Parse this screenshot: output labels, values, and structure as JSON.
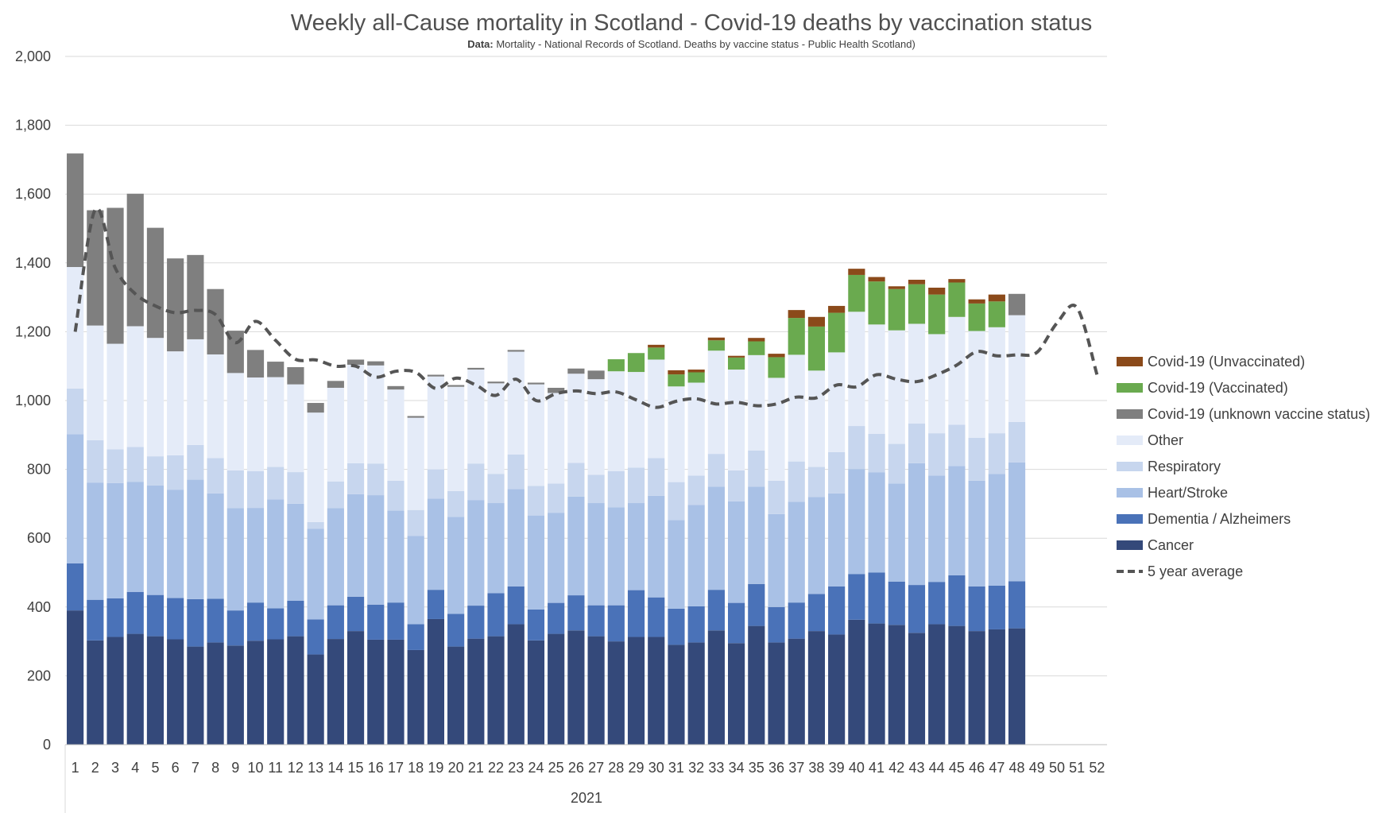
{
  "chart_data": {
    "type": "bar",
    "title": "Weekly all-Cause mortality in Scotland - Covid-19 deaths by vaccination status",
    "subtitle_bold": "Data:",
    "subtitle": " Mortality - National Records of Scotland. Deaths by vaccine status - Public Health Scotland)",
    "xgroup_label": "2021",
    "ylim": [
      0,
      2000
    ],
    "yticks": [
      "0",
      "200",
      "400",
      "600",
      "800",
      "1,000",
      "1,200",
      "1,400",
      "1,600",
      "1,800",
      "2,000"
    ],
    "categories": [
      "1",
      "2",
      "3",
      "4",
      "5",
      "6",
      "7",
      "8",
      "9",
      "10",
      "11",
      "12",
      "13",
      "14",
      "15",
      "16",
      "17",
      "18",
      "19",
      "20",
      "21",
      "22",
      "23",
      "24",
      "25",
      "26",
      "27",
      "28",
      "29",
      "30",
      "31",
      "32",
      "33",
      "34",
      "35",
      "36",
      "37",
      "38",
      "39",
      "40",
      "41",
      "42",
      "43",
      "44",
      "45",
      "46",
      "47",
      "48",
      "49",
      "50",
      "51",
      "52"
    ],
    "stacked": true,
    "grid": true,
    "legend_position": "right",
    "series": [
      {
        "name": "Cancer",
        "color": "#34497a",
        "values": [
          390,
          303,
          313,
          322,
          315,
          306,
          285,
          297,
          288,
          302,
          306,
          315,
          262,
          307,
          330,
          305,
          305,
          275,
          365,
          285,
          308,
          315,
          350,
          303,
          322,
          332,
          315,
          300,
          313,
          313,
          290,
          297,
          332,
          295,
          345,
          297,
          308,
          330,
          320,
          363,
          352,
          348,
          325,
          350,
          345,
          330,
          335,
          338,
          null,
          null,
          null,
          null
        ]
      },
      {
        "name": "Dementia / Alzheimers",
        "color": "#4a72b8",
        "values": [
          137,
          118,
          112,
          122,
          120,
          120,
          138,
          127,
          102,
          111,
          90,
          103,
          102,
          98,
          100,
          102,
          108,
          75,
          85,
          95,
          96,
          125,
          110,
          90,
          90,
          102,
          90,
          105,
          136,
          115,
          105,
          105,
          118,
          117,
          122,
          103,
          105,
          108,
          140,
          133,
          148,
          126,
          139,
          123,
          147,
          130,
          127,
          137,
          null,
          null,
          null,
          null
        ]
      },
      {
        "name": "Heart/Stroke",
        "color": "#a9c1e6",
        "values": [
          375,
          340,
          335,
          320,
          318,
          315,
          347,
          306,
          297,
          275,
          317,
          282,
          263,
          282,
          298,
          318,
          267,
          257,
          265,
          282,
          307,
          262,
          283,
          273,
          262,
          287,
          297,
          285,
          253,
          295,
          258,
          295,
          300,
          295,
          283,
          270,
          293,
          282,
          270,
          305,
          291,
          285,
          354,
          309,
          318,
          307,
          325,
          345,
          null,
          null,
          null,
          null
        ]
      },
      {
        "name": "Respiratory",
        "color": "#c7d6ee",
        "values": [
          133,
          124,
          98,
          101,
          85,
          100,
          101,
          103,
          110,
          107,
          94,
          92,
          20,
          78,
          90,
          92,
          87,
          75,
          85,
          75,
          106,
          85,
          100,
          86,
          85,
          98,
          82,
          105,
          103,
          110,
          110,
          85,
          95,
          90,
          105,
          97,
          117,
          87,
          120,
          125,
          112,
          115,
          115,
          123,
          120,
          125,
          118,
          118,
          null,
          null,
          null,
          null
        ]
      },
      {
        "name": "Other",
        "color": "#e4ebf8",
        "values": [
          353,
          333,
          307,
          351,
          344,
          302,
          307,
          301,
          283,
          272,
          261,
          255,
          318,
          272,
          286,
          285,
          265,
          268,
          270,
          303,
          273,
          263,
          299,
          295,
          263,
          259,
          278,
          290,
          278,
          286,
          278,
          270,
          300,
          293,
          277,
          299,
          310,
          280,
          290,
          332,
          318,
          330,
          290,
          288,
          313,
          310,
          308,
          310,
          null,
          null,
          null,
          null
        ]
      },
      {
        "name": "Covid-19 (unknown vaccine status)",
        "color": "#7f7f7f",
        "values": [
          330,
          335,
          395,
          385,
          320,
          270,
          245,
          190,
          123,
          80,
          45,
          50,
          28,
          20,
          15,
          12,
          10,
          5,
          5,
          5,
          5,
          5,
          5,
          5,
          15,
          15,
          25,
          0,
          0,
          0,
          0,
          0,
          0,
          0,
          0,
          0,
          0,
          0,
          0,
          0,
          0,
          0,
          0,
          0,
          0,
          0,
          0,
          62,
          null,
          null,
          null,
          null
        ]
      },
      {
        "name": "Covid-19 (Vaccinated)",
        "color": "#6aaa4f",
        "values": [
          0,
          0,
          0,
          0,
          0,
          0,
          0,
          0,
          0,
          0,
          0,
          0,
          0,
          0,
          0,
          0,
          0,
          0,
          0,
          0,
          0,
          0,
          0,
          0,
          0,
          0,
          0,
          35,
          55,
          35,
          35,
          30,
          30,
          35,
          40,
          60,
          107,
          128,
          115,
          107,
          125,
          120,
          115,
          115,
          100,
          80,
          75,
          0,
          null,
          null,
          null,
          null
        ]
      },
      {
        "name": "Covid-19 (Unvaccinated)",
        "color": "#8b4a1a",
        "values": [
          0,
          0,
          0,
          0,
          0,
          0,
          0,
          0,
          0,
          0,
          0,
          0,
          0,
          0,
          0,
          0,
          0,
          0,
          0,
          0,
          0,
          0,
          0,
          0,
          0,
          0,
          0,
          0,
          0,
          8,
          12,
          8,
          8,
          5,
          10,
          10,
          23,
          28,
          20,
          18,
          13,
          8,
          13,
          20,
          10,
          12,
          20,
          0,
          null,
          null,
          null,
          null
        ]
      },
      {
        "name": "5 year average",
        "type": "line",
        "style": "dashed",
        "color": "#555555",
        "values": [
          1200,
          1555,
          1385,
          1310,
          1275,
          1255,
          1262,
          1250,
          1168,
          1230,
          1175,
          1120,
          1118,
          1100,
          1100,
          1068,
          1085,
          1082,
          1035,
          1065,
          1045,
          1015,
          1062,
          1000,
          1020,
          1028,
          1020,
          1025,
          1002,
          980,
          998,
          1005,
          990,
          995,
          985,
          990,
          1010,
          1008,
          1045,
          1040,
          1075,
          1062,
          1055,
          1075,
          1103,
          1142,
          1130,
          1133,
          1140,
          1225,
          1270,
          1075
        ]
      }
    ],
    "legend_order": [
      "Covid-19 (Unvaccinated)",
      "Covid-19 (Vaccinated)",
      "Covid-19 (unknown vaccine status)",
      "Other",
      "Respiratory",
      "Heart/Stroke",
      "Dementia / Alzheimers",
      "Cancer",
      "5 year average"
    ]
  }
}
